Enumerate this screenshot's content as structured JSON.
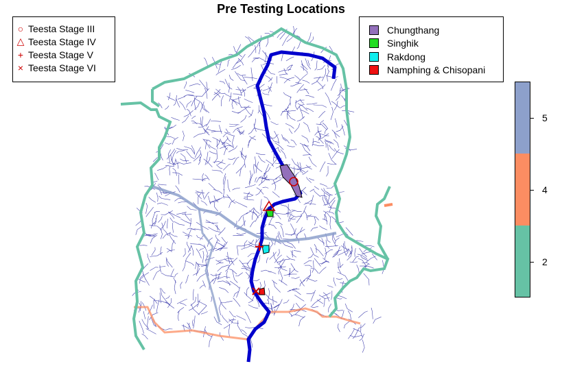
{
  "title": "Pre Testing Locations",
  "stage_legend": [
    {
      "symbol": "○",
      "label": "Teesta Stage III",
      "icon": "circle-marker-icon"
    },
    {
      "symbol": "△",
      "label": "Teesta Stage IV",
      "icon": "triangle-marker-icon"
    },
    {
      "symbol": "+",
      "label": "Teesta Stage V",
      "icon": "plus-marker-icon"
    },
    {
      "symbol": "×",
      "label": "Teesta Stage VI",
      "icon": "cross-marker-icon"
    }
  ],
  "location_legend": [
    {
      "label": "Chungthang",
      "color": "#9370bb"
    },
    {
      "label": "Singhik",
      "color": "#22dd22"
    },
    {
      "label": "Rakdong",
      "color": "#11eeee"
    },
    {
      "label": "Namphing & Chisopani",
      "color": "#ee1111"
    }
  ],
  "colorbar": {
    "ticks": [
      "2",
      "4",
      "5"
    ],
    "colors": {
      "low": "#66c2a5",
      "mid": "#fc8d62",
      "high": "#8da0cb"
    }
  },
  "colors": {
    "main_river": "#0000cc",
    "streams": "#2020a0",
    "boundary": "#66c2a5",
    "marker": "#cc0000"
  }
}
